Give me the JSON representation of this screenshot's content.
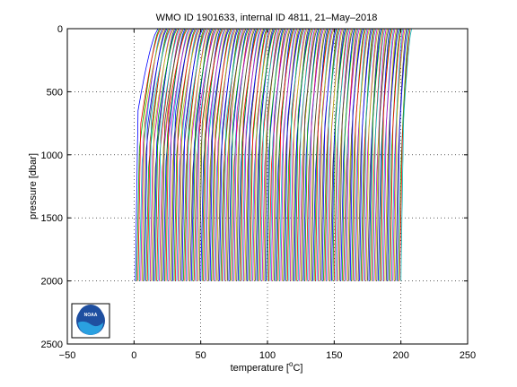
{
  "chart_data": {
    "type": "line",
    "title": "WMO ID 1901633, internal ID 4811, 21–May–2018",
    "xlabel_pre": "temperature [",
    "xlabel_sup": "o",
    "xlabel_post": "C]",
    "ylabel": "pressure [dbar]",
    "xlim": [
      -50,
      250
    ],
    "ylim": [
      0,
      2500
    ],
    "y_reversed": true,
    "grid": true,
    "grid_style": "dotted",
    "xticks": [
      -50,
      0,
      50,
      100,
      150,
      200,
      250
    ],
    "yticks": [
      0,
      500,
      1000,
      1500,
      2000,
      2500
    ],
    "profiles": {
      "count": 200,
      "first_offset": 0,
      "step": 1,
      "surface_temp_first": 18,
      "surface_temp_last": 208,
      "deep_temp_first": 1,
      "deep_temp_last": 200,
      "max_pressure": 2000,
      "colors": [
        "#0000ff",
        "#00aa00",
        "#ff0000",
        "#00bfbf",
        "#bf00bf",
        "#bfbf00",
        "#404040"
      ]
    },
    "logo": {
      "text": "NOAA",
      "colors": [
        "#1f4fa0",
        "#2aa0e0",
        "#ffffff"
      ]
    }
  }
}
